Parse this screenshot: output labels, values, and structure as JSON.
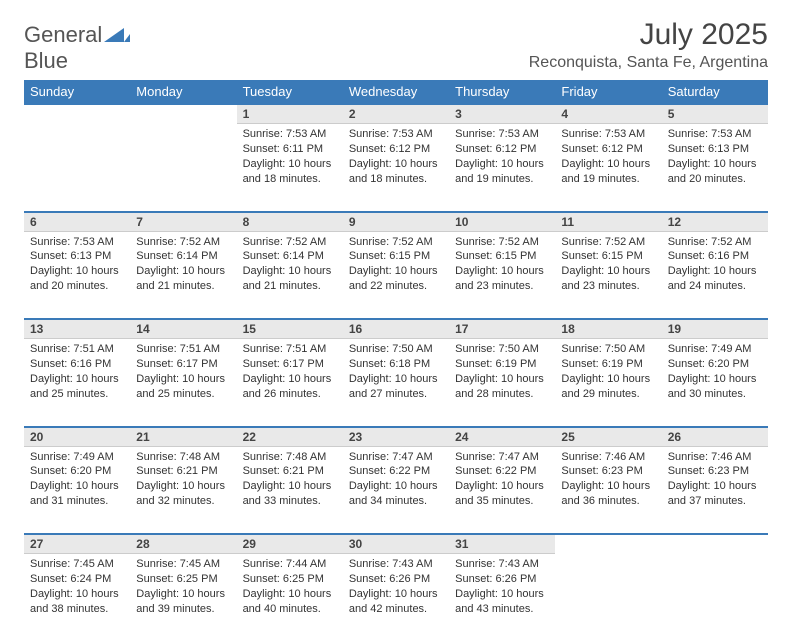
{
  "logo": {
    "text_gray": "General",
    "text_blue": "Blue",
    "icon_color": "#3a7ab8"
  },
  "title": "July 2025",
  "location": "Reconquista, Santa Fe, Argentina",
  "colors": {
    "header_bg": "#3a7ab8",
    "header_text": "#ffffff",
    "daynum_bg": "#e9e9e9",
    "border_accent": "#3a7ab8"
  },
  "weekdays": [
    "Sunday",
    "Monday",
    "Tuesday",
    "Wednesday",
    "Thursday",
    "Friday",
    "Saturday"
  ],
  "weeks": [
    [
      null,
      null,
      {
        "n": "1",
        "sunrise": "7:53 AM",
        "sunset": "6:11 PM",
        "daylight": "10 hours and 18 minutes."
      },
      {
        "n": "2",
        "sunrise": "7:53 AM",
        "sunset": "6:12 PM",
        "daylight": "10 hours and 18 minutes."
      },
      {
        "n": "3",
        "sunrise": "7:53 AM",
        "sunset": "6:12 PM",
        "daylight": "10 hours and 19 minutes."
      },
      {
        "n": "4",
        "sunrise": "7:53 AM",
        "sunset": "6:12 PM",
        "daylight": "10 hours and 19 minutes."
      },
      {
        "n": "5",
        "sunrise": "7:53 AM",
        "sunset": "6:13 PM",
        "daylight": "10 hours and 20 minutes."
      }
    ],
    [
      {
        "n": "6",
        "sunrise": "7:53 AM",
        "sunset": "6:13 PM",
        "daylight": "10 hours and 20 minutes."
      },
      {
        "n": "7",
        "sunrise": "7:52 AM",
        "sunset": "6:14 PM",
        "daylight": "10 hours and 21 minutes."
      },
      {
        "n": "8",
        "sunrise": "7:52 AM",
        "sunset": "6:14 PM",
        "daylight": "10 hours and 21 minutes."
      },
      {
        "n": "9",
        "sunrise": "7:52 AM",
        "sunset": "6:15 PM",
        "daylight": "10 hours and 22 minutes."
      },
      {
        "n": "10",
        "sunrise": "7:52 AM",
        "sunset": "6:15 PM",
        "daylight": "10 hours and 23 minutes."
      },
      {
        "n": "11",
        "sunrise": "7:52 AM",
        "sunset": "6:15 PM",
        "daylight": "10 hours and 23 minutes."
      },
      {
        "n": "12",
        "sunrise": "7:52 AM",
        "sunset": "6:16 PM",
        "daylight": "10 hours and 24 minutes."
      }
    ],
    [
      {
        "n": "13",
        "sunrise": "7:51 AM",
        "sunset": "6:16 PM",
        "daylight": "10 hours and 25 minutes."
      },
      {
        "n": "14",
        "sunrise": "7:51 AM",
        "sunset": "6:17 PM",
        "daylight": "10 hours and 25 minutes."
      },
      {
        "n": "15",
        "sunrise": "7:51 AM",
        "sunset": "6:17 PM",
        "daylight": "10 hours and 26 minutes."
      },
      {
        "n": "16",
        "sunrise": "7:50 AM",
        "sunset": "6:18 PM",
        "daylight": "10 hours and 27 minutes."
      },
      {
        "n": "17",
        "sunrise": "7:50 AM",
        "sunset": "6:19 PM",
        "daylight": "10 hours and 28 minutes."
      },
      {
        "n": "18",
        "sunrise": "7:50 AM",
        "sunset": "6:19 PM",
        "daylight": "10 hours and 29 minutes."
      },
      {
        "n": "19",
        "sunrise": "7:49 AM",
        "sunset": "6:20 PM",
        "daylight": "10 hours and 30 minutes."
      }
    ],
    [
      {
        "n": "20",
        "sunrise": "7:49 AM",
        "sunset": "6:20 PM",
        "daylight": "10 hours and 31 minutes."
      },
      {
        "n": "21",
        "sunrise": "7:48 AM",
        "sunset": "6:21 PM",
        "daylight": "10 hours and 32 minutes."
      },
      {
        "n": "22",
        "sunrise": "7:48 AM",
        "sunset": "6:21 PM",
        "daylight": "10 hours and 33 minutes."
      },
      {
        "n": "23",
        "sunrise": "7:47 AM",
        "sunset": "6:22 PM",
        "daylight": "10 hours and 34 minutes."
      },
      {
        "n": "24",
        "sunrise": "7:47 AM",
        "sunset": "6:22 PM",
        "daylight": "10 hours and 35 minutes."
      },
      {
        "n": "25",
        "sunrise": "7:46 AM",
        "sunset": "6:23 PM",
        "daylight": "10 hours and 36 minutes."
      },
      {
        "n": "26",
        "sunrise": "7:46 AM",
        "sunset": "6:23 PM",
        "daylight": "10 hours and 37 minutes."
      }
    ],
    [
      {
        "n": "27",
        "sunrise": "7:45 AM",
        "sunset": "6:24 PM",
        "daylight": "10 hours and 38 minutes."
      },
      {
        "n": "28",
        "sunrise": "7:45 AM",
        "sunset": "6:25 PM",
        "daylight": "10 hours and 39 minutes."
      },
      {
        "n": "29",
        "sunrise": "7:44 AM",
        "sunset": "6:25 PM",
        "daylight": "10 hours and 40 minutes."
      },
      {
        "n": "30",
        "sunrise": "7:43 AM",
        "sunset": "6:26 PM",
        "daylight": "10 hours and 42 minutes."
      },
      {
        "n": "31",
        "sunrise": "7:43 AM",
        "sunset": "6:26 PM",
        "daylight": "10 hours and 43 minutes."
      },
      null,
      null
    ]
  ],
  "labels": {
    "sunrise": "Sunrise:",
    "sunset": "Sunset:",
    "daylight": "Daylight:"
  }
}
